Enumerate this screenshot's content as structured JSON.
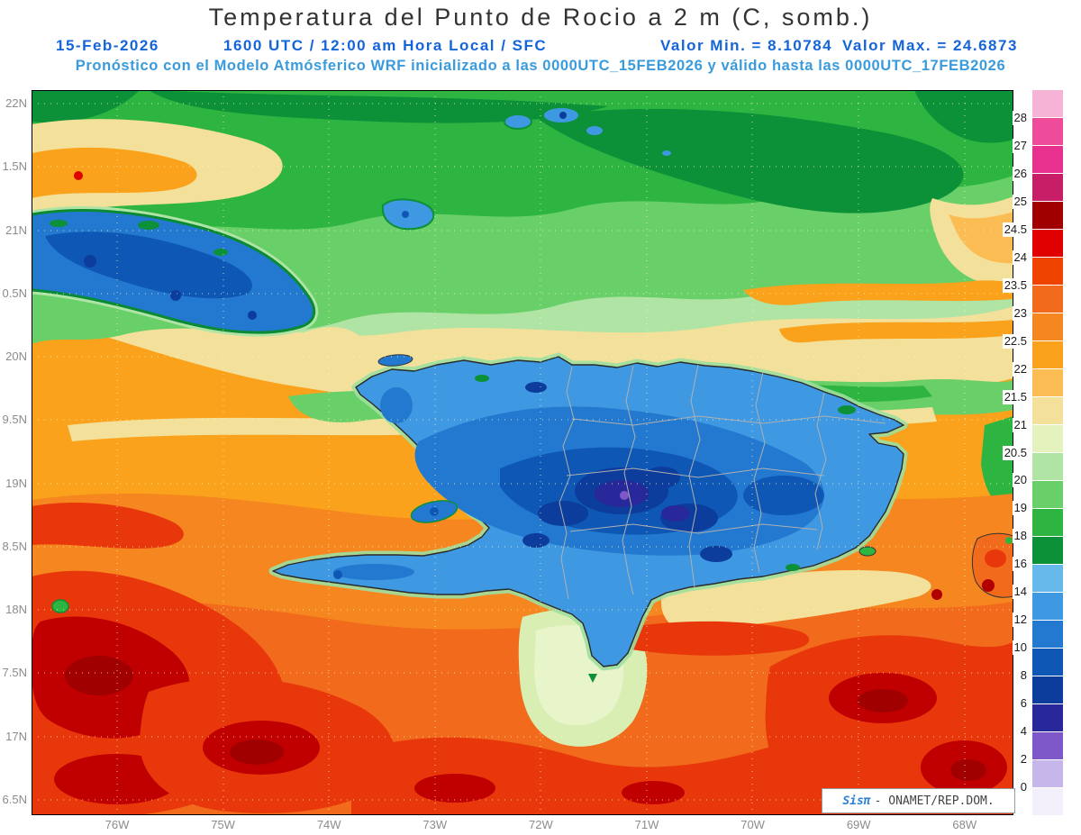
{
  "title": "Temperatura del Punto de Rocio a 2 m (C, somb.)",
  "header": {
    "date": "15-Feb-2026",
    "time_info": "1600 UTC / 12:00 am Hora Local / SFC",
    "min_value_label": "Valor Min. = 8.10784",
    "max_value_label": "Valor Max. = 24.6873",
    "model_line": "Pronóstico con el Modelo Atmósferico WRF inicializado a las 0000UTC_15FEB2026 y válido hasta las  0000UTC_17FEB2026"
  },
  "theme": {
    "header_blue": "#1565d8",
    "model_line_blue": "#3a9bdc",
    "axis_label_gray": "#8c8c8c",
    "title_color": "#333333"
  },
  "map": {
    "lat_labels": [
      "22N",
      "1.5N",
      "21N",
      "0.5N",
      "20N",
      "9.5N",
      "19N",
      "8.5N",
      "18N",
      "7.5N",
      "17N",
      "6.5N"
    ],
    "lon_labels": [
      "76W",
      "75W",
      "74W",
      "73W",
      "72W",
      "71W",
      "70W",
      "69W",
      "68W"
    ]
  },
  "colorbar": {
    "unit": "C",
    "labels": [
      "28",
      "27",
      "26",
      "25",
      "24.5",
      "24",
      "23.5",
      "23",
      "22.5",
      "22",
      "21.5",
      "21",
      "20.5",
      "20",
      "19",
      "18",
      "16",
      "14",
      "12",
      "10",
      "8",
      "6",
      "4",
      "2",
      "0"
    ],
    "colors_top_to_bottom": [
      "#f7b3d5",
      "#ee4c9b",
      "#e8318e",
      "#c81e68",
      "#a00000",
      "#e00000",
      "#ee4400",
      "#f26a1b",
      "#f6861f",
      "#faa21b",
      "#fcbc54",
      "#f3e09a",
      "#e4f3be",
      "#afe4a4",
      "#69cf69",
      "#2eb440",
      "#0c9038",
      "#66b9ea",
      "#3e99e2",
      "#2379cf",
      "#0f57b4",
      "#0c3c9c",
      "#28289a",
      "#7e57c8",
      "#c7b6ea",
      "#f3effb"
    ]
  },
  "watermark": {
    "brand": "Sisπ",
    "suffix": "- ONAMET/REP.DOM."
  },
  "chart_data": {
    "type": "heatmap",
    "field": "Temperatura del Punto de Rocio a 2 m (C)",
    "valid_time": "15-Feb-2026 1600 UTC / 12:00 am Hora Local / SFC",
    "min": 8.10784,
    "max": 24.6873,
    "lat_axis": [
      "22N",
      "1.5N",
      "21N",
      "0.5N",
      "20N",
      "9.5N",
      "19N",
      "8.5N",
      "18N",
      "7.5N",
      "17N",
      "6.5N"
    ],
    "lon_axis": [
      "76W",
      "75W",
      "74W",
      "73W",
      "72W",
      "71W",
      "70W",
      "69W",
      "68W"
    ],
    "scale_boundaries_c": [
      28,
      27,
      26,
      25,
      24.5,
      24,
      23.5,
      23,
      22.5,
      22,
      21.5,
      21,
      20.5,
      20,
      19,
      18,
      16,
      14,
      12,
      10,
      8,
      6,
      4,
      2,
      0
    ],
    "legend_position": "right"
  }
}
